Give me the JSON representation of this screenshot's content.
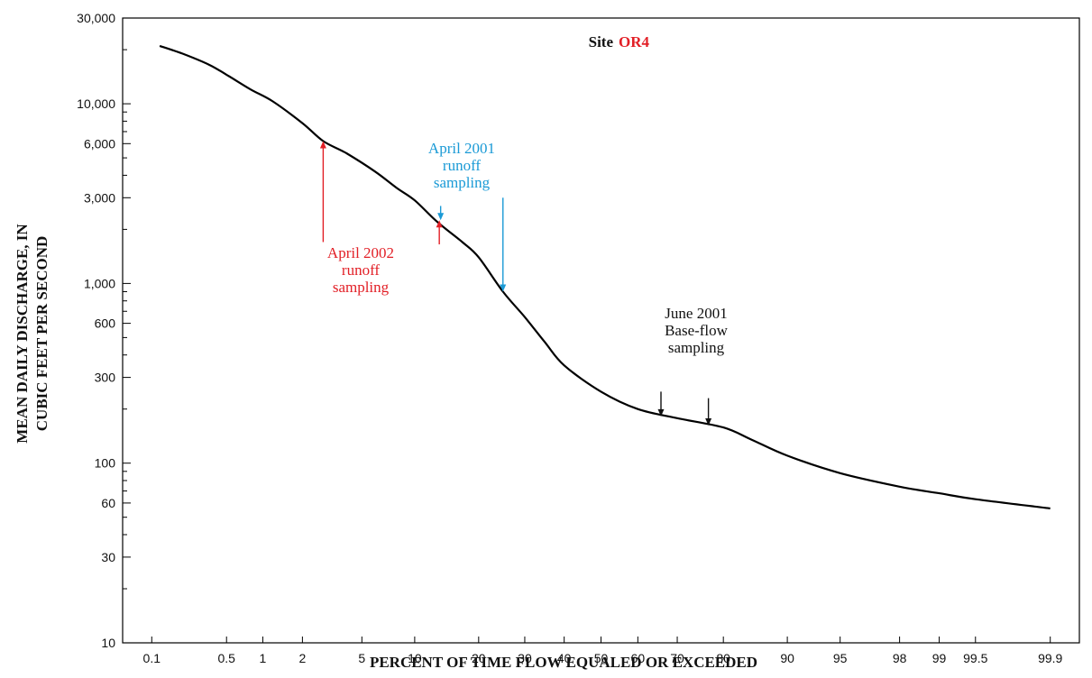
{
  "chart_data": {
    "type": "line",
    "title_prefix": "Site",
    "title_site": "OR4",
    "xlabel": "PERCENT OF TIME FLOW EQUALED OR EXCEEDED",
    "ylabel_line1": "MEAN DAILY DISCHARGE, IN",
    "ylabel_line2": "CUBIC FEET PER SECOND",
    "x_scale": "probability",
    "y_scale": "log",
    "ylim": [
      10,
      30000
    ],
    "xlim": [
      0.05,
      99.95
    ],
    "x_ticks": [
      {
        "value": 0.1,
        "label": "0.1"
      },
      {
        "value": 0.5,
        "label": "0.5"
      },
      {
        "value": 1,
        "label": "1"
      },
      {
        "value": 2,
        "label": "2"
      },
      {
        "value": 5,
        "label": "5"
      },
      {
        "value": 10,
        "label": "10"
      },
      {
        "value": 20,
        "label": "20"
      },
      {
        "value": 30,
        "label": "30"
      },
      {
        "value": 40,
        "label": "40"
      },
      {
        "value": 50,
        "label": "50"
      },
      {
        "value": 60,
        "label": "60"
      },
      {
        "value": 70,
        "label": "70"
      },
      {
        "value": 80,
        "label": "80"
      },
      {
        "value": 90,
        "label": "90"
      },
      {
        "value": 95,
        "label": "95"
      },
      {
        "value": 98,
        "label": "98"
      },
      {
        "value": 99,
        "label": "99"
      },
      {
        "value": 99.5,
        "label": "99.5"
      },
      {
        "value": 99.9,
        "label": "99.9"
      }
    ],
    "y_ticks_major": [
      {
        "value": 10,
        "label": "10"
      },
      {
        "value": 30,
        "label": "30"
      },
      {
        "value": 60,
        "label": "60"
      },
      {
        "value": 100,
        "label": "100"
      },
      {
        "value": 300,
        "label": "300"
      },
      {
        "value": 600,
        "label": "600"
      },
      {
        "value": 1000,
        "label": "1,000"
      },
      {
        "value": 3000,
        "label": "3,000"
      },
      {
        "value": 6000,
        "label": "6,000"
      },
      {
        "value": 10000,
        "label": "10,000"
      },
      {
        "value": 30000,
        "label": "30,000"
      }
    ],
    "y_ticks_minor": [
      20,
      40,
      50,
      70,
      80,
      90,
      200,
      400,
      500,
      700,
      800,
      900,
      2000,
      4000,
      5000,
      7000,
      8000,
      9000,
      20000
    ],
    "series": [
      {
        "color": "#000000",
        "points": [
          [
            0.12,
            21000
          ],
          [
            0.2,
            19000
          ],
          [
            0.35,
            16500
          ],
          [
            0.5,
            14500
          ],
          [
            0.8,
            12000
          ],
          [
            1.2,
            10300
          ],
          [
            2,
            7800
          ],
          [
            2.8,
            6200
          ],
          [
            4,
            5300
          ],
          [
            6,
            4200
          ],
          [
            8,
            3400
          ],
          [
            10,
            2900
          ],
          [
            13,
            2200
          ],
          [
            17,
            1700
          ],
          [
            20,
            1400
          ],
          [
            25,
            900
          ],
          [
            30,
            650
          ],
          [
            35,
            470
          ],
          [
            40,
            350
          ],
          [
            50,
            250
          ],
          [
            60,
            200
          ],
          [
            70,
            178
          ],
          [
            80,
            158
          ],
          [
            85,
            135
          ],
          [
            90,
            110
          ],
          [
            95,
            88
          ],
          [
            98,
            74
          ],
          [
            99,
            68
          ],
          [
            99.5,
            63
          ],
          [
            99.9,
            56
          ]
        ]
      }
    ],
    "annotations": [
      {
        "color": "#e21f26",
        "lines": [
          "April 2002",
          "runoff",
          "sampling"
        ]
      },
      {
        "color": "#1a9ad6",
        "lines": [
          "April 2001",
          "runoff",
          "sampling"
        ]
      },
      {
        "color": "#111111",
        "lines": [
          "June 2001",
          "Base-flow",
          "sampling"
        ]
      }
    ],
    "arrows": [
      {
        "name": "april-2002-arrow-1",
        "color": "#e21f26",
        "x": 2.8,
        "y_from": 1700,
        "y_to": 6200,
        "dir": "up"
      },
      {
        "name": "april-2002-arrow-2",
        "color": "#e21f26",
        "x": 13.3,
        "y_from": 1650,
        "y_to": 2250,
        "dir": "up"
      },
      {
        "name": "april-2001-arrow-1",
        "color": "#1a9ad6",
        "x": 13.5,
        "y_from": 2700,
        "y_to": 2250,
        "dir": "down"
      },
      {
        "name": "april-2001-arrow-2",
        "color": "#1a9ad6",
        "x": 25,
        "y_from": 3000,
        "y_to": 900,
        "dir": "down"
      },
      {
        "name": "june-2001-arrow-1",
        "color": "#111111",
        "x": 66,
        "y_from": 250,
        "y_to": 182,
        "dir": "down"
      },
      {
        "name": "june-2001-arrow-2",
        "color": "#111111",
        "x": 77,
        "y_from": 230,
        "y_to": 162,
        "dir": "down"
      }
    ],
    "colors": {
      "site_label": "#e21f26",
      "line": "#000000"
    }
  }
}
